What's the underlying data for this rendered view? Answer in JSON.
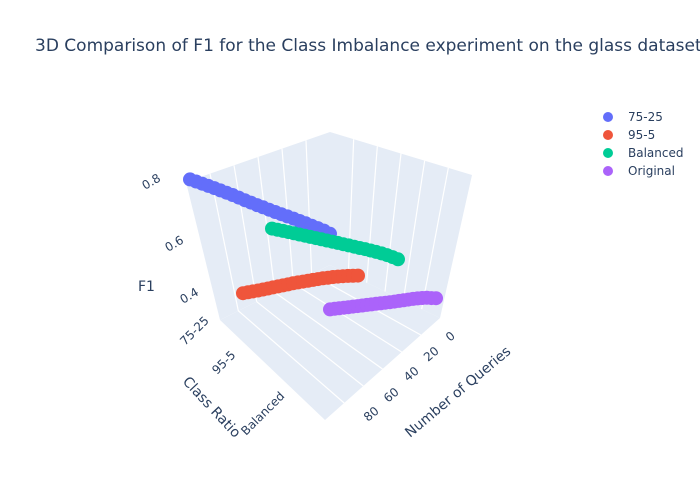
{
  "chart_data": {
    "type": "scatter3d",
    "title": "3D Comparison of F1 for the Class Imbalance experiment on the glass dataset",
    "axes": {
      "x": {
        "label": "Number of Queries",
        "ticks": [
          0,
          20,
          40,
          60,
          80
        ],
        "range": [
          0,
          90
        ]
      },
      "y": {
        "label": "Class Ratio",
        "ticks": [
          "75-25",
          "95-5",
          "Balanced"
        ],
        "categories": [
          "75-25",
          "95-5",
          "Balanced",
          "Original"
        ]
      },
      "z": {
        "label": "F1",
        "ticks": [
          0.4,
          0.6,
          0.8
        ],
        "range": [
          0.3,
          0.85
        ]
      }
    },
    "legend": {
      "placement": "top-right"
    },
    "series": [
      {
        "name": "75-25",
        "color": "#636efa",
        "y": "75-25",
        "x": [
          90,
          86,
          82,
          78,
          74,
          70,
          66,
          62,
          58,
          54,
          50,
          46,
          42,
          38,
          34,
          30,
          26,
          22,
          18,
          14,
          10,
          6,
          2,
          0
        ],
        "f1": [
          0.8,
          0.805,
          0.806,
          0.805,
          0.805,
          0.803,
          0.8,
          0.795,
          0.78,
          0.765,
          0.755,
          0.745,
          0.745,
          0.74,
          0.735,
          0.735,
          0.735,
          0.735,
          0.73,
          0.725,
          0.72,
          0.71,
          0.7,
          0.66
        ]
      },
      {
        "name": "95-5",
        "color": "#ef553b",
        "y": "95-5",
        "x": [
          90,
          86,
          82,
          78,
          74,
          70,
          66,
          62,
          58,
          54,
          50,
          46,
          42,
          38,
          34,
          30,
          26,
          22,
          18,
          14,
          10,
          6,
          2,
          0
        ],
        "f1": [
          0.37,
          0.38,
          0.39,
          0.4,
          0.415,
          0.43,
          0.45,
          0.465,
          0.48,
          0.495,
          0.51,
          0.52,
          0.53,
          0.535,
          0.545,
          0.55,
          0.555,
          0.55,
          0.555,
          0.545,
          0.535,
          0.52,
          0.5,
          0.48
        ]
      },
      {
        "name": "Balanced",
        "color": "#00cc96",
        "y": "Balanced",
        "x": [
          90,
          86,
          82,
          78,
          74,
          70,
          66,
          62,
          58,
          54,
          50,
          46,
          42,
          38,
          34,
          30,
          26,
          22,
          18,
          14,
          10,
          6,
          2,
          0
        ],
        "f1": [
          0.67,
          0.675,
          0.68,
          0.683,
          0.685,
          0.688,
          0.69,
          0.692,
          0.695,
          0.698,
          0.7,
          0.702,
          0.705,
          0.706,
          0.707,
          0.705,
          0.705,
          0.71,
          0.705,
          0.7,
          0.69,
          0.67,
          0.64,
          0.6
        ]
      },
      {
        "name": "Original",
        "color": "#ab63fa",
        "y": "Original",
        "x": [
          90,
          86,
          82,
          78,
          74,
          70,
          66,
          62,
          58,
          54,
          50,
          46,
          42,
          38,
          34,
          30,
          26,
          22,
          18,
          14,
          10,
          6,
          2,
          0
        ],
        "f1": [
          0.35,
          0.355,
          0.36,
          0.365,
          0.37,
          0.375,
          0.38,
          0.385,
          0.39,
          0.395,
          0.4,
          0.405,
          0.41,
          0.415,
          0.42,
          0.43,
          0.44,
          0.45,
          0.46,
          0.465,
          0.46,
          0.45,
          0.42,
          0.4
        ]
      }
    ]
  }
}
